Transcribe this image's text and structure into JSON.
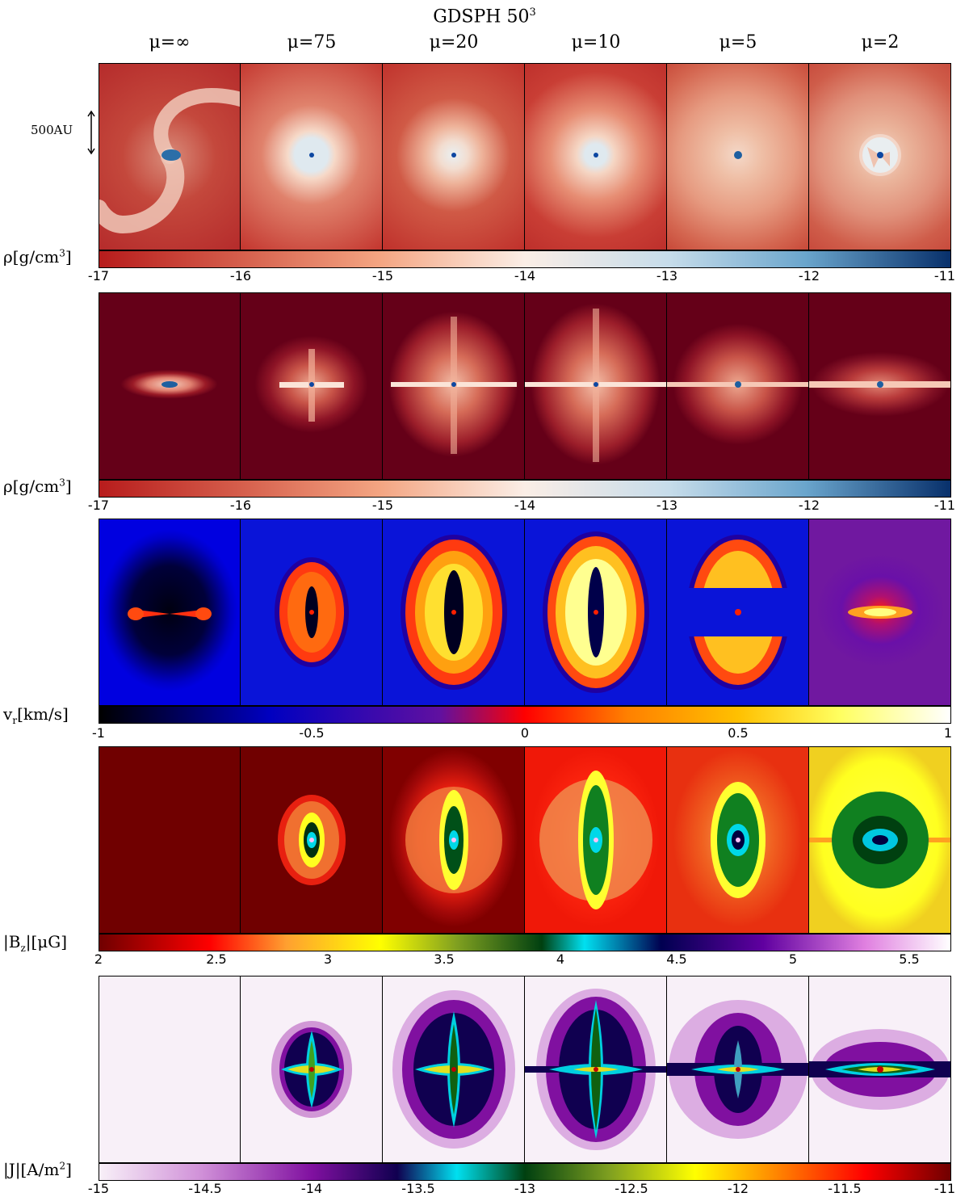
{
  "header": {
    "title_prefix": "GDSPH 50",
    "title_sup": "3"
  },
  "columns": [
    "μ=∞",
    "μ=75",
    "μ=20",
    "μ=10",
    "μ=5",
    "μ=2"
  ],
  "scale_bar": {
    "label": "500AU"
  },
  "rows": [
    {
      "id": "density-faceon",
      "colorbar": {
        "label_main": "ρ[g/cm",
        "label_sup": "3",
        "label_end": "]",
        "ticks": [
          "-17",
          "-16",
          "-15",
          "-14",
          "-13",
          "-12",
          "-11"
        ]
      }
    },
    {
      "id": "density-edgeon",
      "colorbar": {
        "label_main": "ρ[g/cm",
        "label_sup": "3",
        "label_end": "]",
        "ticks": [
          "-17",
          "-16",
          "-15",
          "-14",
          "-13",
          "-12",
          "-11"
        ]
      }
    },
    {
      "id": "radial-velocity",
      "colorbar": {
        "label_main": "v",
        "label_sub": "r",
        "label_end": "[km/s]",
        "ticks": [
          "-1",
          "-0.5",
          "0",
          "0.5",
          "1"
        ]
      }
    },
    {
      "id": "magnetic-field",
      "colorbar": {
        "label_main": "|B",
        "label_sub": "z",
        "label_end": "|[μG]",
        "ticks": [
          "2",
          "2.5",
          "3",
          "3.5",
          "4",
          "4.5",
          "5",
          "5.5"
        ]
      }
    },
    {
      "id": "current-density",
      "colorbar": {
        "label_main": "|J|[A/m",
        "label_sup": "2",
        "label_end": "]",
        "ticks": [
          "-15",
          "-14.5",
          "-14",
          "-13.5",
          "-13",
          "-12.5",
          "-12",
          "-11.5",
          "-11"
        ]
      }
    }
  ],
  "colors": {
    "density_low": "#b71c1c",
    "density_high": "#0d47a1",
    "velocity_neg": "#000000",
    "velocity_pos": "#ffffff",
    "bz_low": "#8b0000",
    "j_low": "#f8f0f8"
  }
}
